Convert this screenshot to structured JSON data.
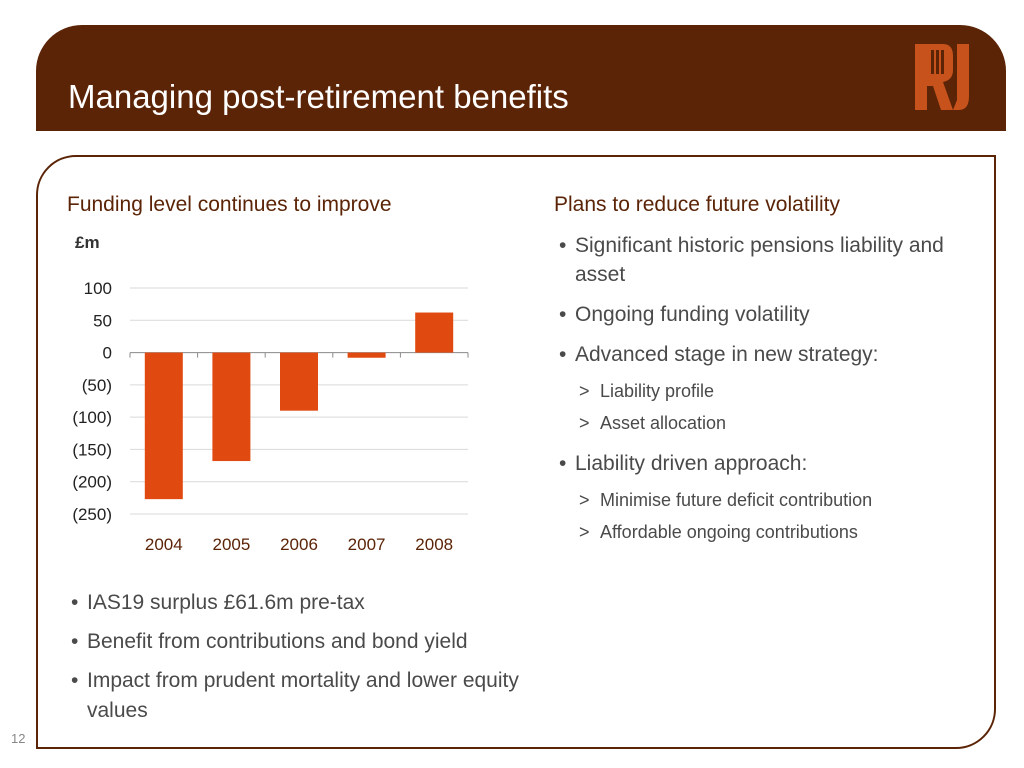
{
  "header": {
    "title": "Managing post-retirement benefits"
  },
  "left": {
    "heading": "Funding level continues to improve",
    "bullets": [
      "IAS19 surplus £61.6m pre-tax",
      "Benefit from contributions and bond yield",
      "Impact from prudent mortality and lower equity values"
    ]
  },
  "right": {
    "heading": "Plans to reduce future volatility",
    "bullet1": "Significant historic pensions liability and asset",
    "bullet2": "Ongoing funding volatility",
    "bullet3": "Advanced stage in new strategy:",
    "bullet3_subs": [
      "Liability profile",
      "Asset allocation"
    ],
    "bullet4": "Liability driven approach:",
    "bullet4_subs": [
      "Minimise future deficit contribution",
      "Affordable ongoing contributions"
    ]
  },
  "page_number": "12",
  "colors": {
    "brand": "#5b2407",
    "bar": "#e04a10",
    "heading": "#5b2407"
  },
  "chart_data": {
    "type": "bar",
    "ylabel": "£m",
    "categories": [
      "2004",
      "2005",
      "2006",
      "2007",
      "2008"
    ],
    "values": [
      -227,
      -168,
      -90,
      -8,
      62
    ],
    "ylim": [
      -250,
      100
    ],
    "yticks": [
      100,
      50,
      0,
      -50,
      -100,
      -150,
      -200,
      -250
    ],
    "ytick_labels": [
      "100",
      "50",
      "0",
      "(50)",
      "(100)",
      "(150)",
      "(200)",
      "(250)"
    ],
    "grid": true
  }
}
